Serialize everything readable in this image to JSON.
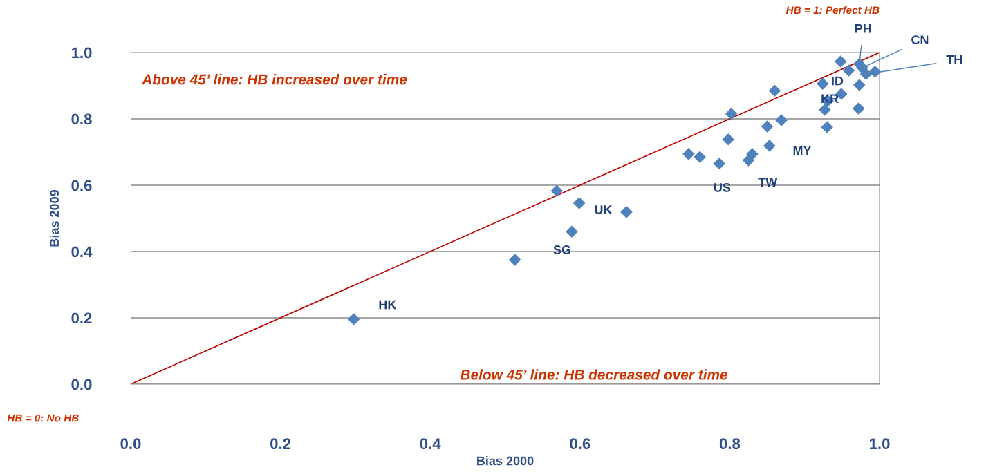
{
  "chart_data": {
    "type": "scatter",
    "xlabel": "Bias 2000",
    "ylabel": "Bias 2009",
    "xlim": [
      0,
      1
    ],
    "ylim": [
      0,
      1
    ],
    "xticks": [
      {
        "value": 0,
        "label": "0.0"
      },
      {
        "value": 0.2,
        "label": "0.2"
      },
      {
        "value": 0.4,
        "label": "0.4"
      },
      {
        "value": 0.6,
        "label": "0.6"
      },
      {
        "value": 0.8,
        "label": "0.8"
      },
      {
        "value": 1,
        "label": "1.0"
      }
    ],
    "yticks": [
      {
        "value": 0,
        "label": "0.0"
      },
      {
        "value": 0.2,
        "label": "0.2"
      },
      {
        "value": 0.4,
        "label": "0.4"
      },
      {
        "value": 0.6,
        "label": "0.6"
      },
      {
        "value": 0.8,
        "label": "0.8"
      },
      {
        "value": 1,
        "label": "1.0"
      }
    ],
    "grid": "y",
    "series": [
      {
        "marker": "diamond",
        "color": "#4f81bd",
        "x": [
          0.298,
          0.513,
          0.569,
          0.599,
          0.589,
          0.662,
          0.745,
          0.76,
          0.786,
          0.798,
          0.802,
          0.825,
          0.83,
          0.85,
          0.853,
          0.869,
          0.86,
          0.93,
          0.927,
          0.931,
          0.924,
          0.949,
          0.973,
          0.972,
          0.948,
          0.959,
          0.973,
          0.977,
          0.982,
          0.994
        ],
        "values": [
          0.196,
          0.375,
          0.583,
          0.546,
          0.46,
          0.519,
          0.694,
          0.685,
          0.665,
          0.738,
          0.815,
          0.675,
          0.694,
          0.777,
          0.719,
          0.796,
          0.885,
          0.775,
          0.827,
          0.854,
          0.906,
          0.875,
          0.902,
          0.831,
          0.973,
          0.946,
          0.965,
          0.954,
          0.935,
          0.942
        ]
      },
      {
        "type": "line",
        "color": "#c00000",
        "x": [
          0,
          1
        ],
        "values": [
          0,
          1
        ]
      }
    ],
    "annotations": [
      {
        "text": "HK",
        "x": 0.298,
        "y": 0.196
      },
      {
        "text": "SG",
        "x": 0.589,
        "y": 0.46
      },
      {
        "text": "UK",
        "x": 0.599,
        "y": 0.546
      },
      {
        "text": "US",
        "x": 0.786,
        "y": 0.665
      },
      {
        "text": "TW",
        "x": 0.825,
        "y": 0.675
      },
      {
        "text": "MY",
        "x": 0.853,
        "y": 0.719
      },
      {
        "text": "KR",
        "x": 0.949,
        "y": 0.875
      },
      {
        "text": "ID",
        "x": 0.959,
        "y": 0.946
      },
      {
        "text": "PH",
        "x": 0.973,
        "y": 0.965
      },
      {
        "text": "CN",
        "x": 0.977,
        "y": 0.954
      },
      {
        "text": "TH",
        "x": 0.982,
        "y": 0.935
      },
      "Above 45’ line: HB increased over time",
      "Below 45’ line: HB decreased over time",
      "HB = 1: Perfect HB",
      "HB = 0: No HB"
    ]
  }
}
